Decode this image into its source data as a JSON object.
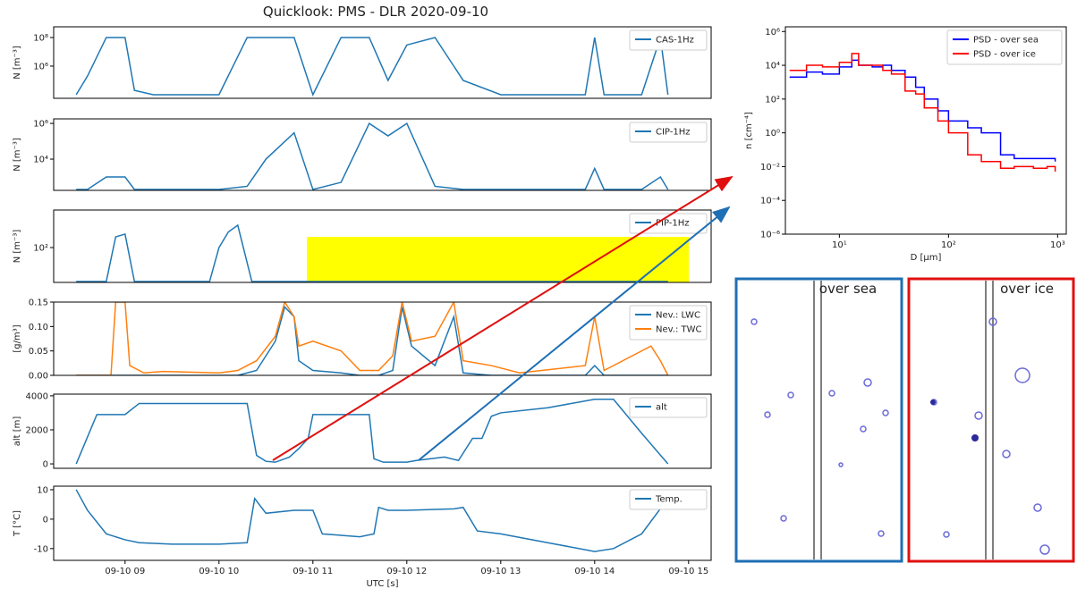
{
  "title": "Quicklook: PMS - DLR 2020-09-10",
  "chart_data": [
    {
      "type": "line",
      "ylabel": "N [m⁻³]",
      "yscale": "log",
      "xlim": [
        8.24,
        15.24
      ],
      "ylim": [
        5600,
        560000000
      ],
      "yticks": [
        {
          "value": 1000000,
          "label": "10⁶"
        },
        {
          "value": 100000000,
          "label": "10⁸"
        }
      ],
      "legend": "upper right",
      "x": [
        8.48,
        8.6,
        8.8,
        9.0,
        9.1,
        9.3,
        9.6,
        10.0,
        10.3,
        10.5,
        10.8,
        11.0,
        11.3,
        11.6,
        11.8,
        12.0,
        12.3,
        12.6,
        13.0,
        13.5,
        13.9,
        14.0,
        14.1,
        14.5,
        14.7,
        14.78
      ],
      "series": [
        {
          "name": "CAS-1Hz",
          "color": "#1f77b4",
          "values": [
            10000,
            200000,
            100000000,
            100000000,
            20000,
            10000,
            10000,
            10000,
            100000000,
            100000000,
            100000000,
            10000,
            100000000,
            100000000,
            100000,
            30000000,
            100000000,
            100000,
            10000,
            10000,
            10000,
            100000000,
            10000,
            10000,
            100000000,
            10000
          ]
        }
      ]
    },
    {
      "type": "line",
      "ylabel": "N [m⁻³]",
      "yscale": "log",
      "xlim": [
        8.24,
        15.24
      ],
      "ylim": [
        178,
        1800000
      ],
      "yticks": [
        {
          "value": 10000,
          "label": "10⁴"
        },
        {
          "value": 1000000,
          "label": "10⁶"
        }
      ],
      "legend": "upper right",
      "x": [
        8.48,
        8.6,
        8.8,
        9.0,
        9.1,
        9.3,
        9.6,
        10.0,
        10.3,
        10.5,
        10.8,
        11.0,
        11.3,
        11.6,
        11.8,
        12.0,
        12.3,
        12.6,
        13.0,
        13.5,
        13.9,
        14.0,
        14.1,
        14.5,
        14.7,
        14.78
      ],
      "series": [
        {
          "name": "CIP-1Hz",
          "color": "#1f77b4",
          "values": [
            200,
            200,
            1000,
            1000,
            200,
            200,
            200,
            200,
            300,
            10000,
            300000,
            200,
            500,
            1000000,
            200000,
            1000000,
            300,
            200,
            200,
            200,
            200,
            3000,
            200,
            200,
            1000,
            200
          ]
        }
      ]
    },
    {
      "type": "line",
      "ylabel": "N [m⁻³]",
      "yscale": "log",
      "xlim": [
        8.24,
        15.24
      ],
      "ylim": [
        2.75,
        4800
      ],
      "yticks": [
        {
          "value": 100,
          "label": "10²"
        }
      ],
      "legend": "upper right",
      "x": [
        8.48,
        8.8,
        8.9,
        9.0,
        9.1,
        9.3,
        9.9,
        10.0,
        10.1,
        10.2,
        10.35,
        10.5,
        14.78
      ],
      "series": [
        {
          "name": "PIP-1Hz",
          "color": "#1f77b4",
          "values": [
            3,
            3,
            300,
            400,
            3,
            3,
            3,
            100,
            500,
            1000,
            3,
            3,
            3
          ]
        }
      ]
    },
    {
      "type": "line",
      "ylabel": "[g/m³]",
      "xlim": [
        8.24,
        15.24
      ],
      "ylim": [
        0,
        0.15
      ],
      "yticks": [
        {
          "value": 0,
          "label": "0.00"
        },
        {
          "value": 0.05,
          "label": "0.05"
        },
        {
          "value": 0.1,
          "label": "0.10"
        },
        {
          "value": 0.15,
          "label": "0.15"
        }
      ],
      "legend": "upper right",
      "x": [
        8.48,
        8.85,
        8.9,
        9.0,
        9.05,
        9.2,
        9.4,
        10.0,
        10.2,
        10.4,
        10.6,
        10.7,
        10.8,
        10.85,
        11.0,
        11.3,
        11.5,
        11.7,
        11.85,
        11.95,
        12.05,
        12.3,
        12.5,
        12.6,
        12.9,
        13.2,
        13.9,
        14.0,
        14.1,
        14.6,
        14.7,
        14.78
      ],
      "series": [
        {
          "name": "Nev.: LWC",
          "color": "#1f77b4",
          "values": [
            0,
            0,
            0,
            0,
            0,
            0,
            0,
            0,
            0,
            0.01,
            0.07,
            0.14,
            0.12,
            0.03,
            0.01,
            0.005,
            0,
            0,
            0.01,
            0.14,
            0.06,
            0.02,
            0.12,
            0.005,
            0,
            0,
            0,
            0.02,
            0,
            0,
            0,
            0
          ]
        },
        {
          "name": "Nev.: TWC",
          "color": "#ff7f0e",
          "values": [
            0,
            0,
            0.15,
            0.15,
            0.02,
            0.005,
            0.008,
            0.005,
            0.01,
            0.03,
            0.08,
            0.15,
            0.12,
            0.06,
            0.07,
            0.05,
            0.01,
            0.01,
            0.04,
            0.15,
            0.07,
            0.08,
            0.15,
            0.03,
            0.02,
            0.005,
            0.02,
            0.12,
            0.01,
            0.06,
            0.03,
            0
          ]
        }
      ]
    },
    {
      "type": "line",
      "ylabel": "alt [m]",
      "xlim": [
        8.24,
        15.24
      ],
      "ylim": [
        -260,
        4100
      ],
      "yticks": [
        0,
        2000,
        4000
      ],
      "legend": "upper right",
      "x": [
        8.48,
        8.7,
        9.0,
        9.15,
        10.0,
        10.3,
        10.4,
        10.5,
        10.6,
        10.75,
        10.85,
        10.95,
        11.0,
        11.6,
        11.65,
        11.75,
        12.0,
        12.1,
        12.4,
        12.55,
        12.7,
        12.8,
        12.9,
        13.0,
        13.5,
        14.0,
        14.2,
        14.5,
        14.78
      ],
      "series": [
        {
          "name": "alt",
          "color": "#1f77b4",
          "values": [
            0,
            2900,
            2900,
            3550,
            3550,
            3550,
            500,
            150,
            100,
            400,
            900,
            1500,
            2900,
            2900,
            300,
            100,
            100,
            200,
            400,
            200,
            1500,
            1500,
            2800,
            3000,
            3300,
            3800,
            3800,
            1800,
            0
          ]
        }
      ]
    },
    {
      "type": "line",
      "ylabel": "T [°C]",
      "xlabel": "UTC [s]",
      "xlim": [
        8.24,
        15.24
      ],
      "ylim": [
        -14,
        11.2
      ],
      "yticks": [
        -10,
        0,
        10
      ],
      "legend": "upper right",
      "xticks": [
        {
          "value": 9,
          "label": "09-10 09"
        },
        {
          "value": 10,
          "label": "09-10 10"
        },
        {
          "value": 11,
          "label": "09-10 11"
        },
        {
          "value": 12,
          "label": "09-10 12"
        },
        {
          "value": 13,
          "label": "09-10 13"
        },
        {
          "value": 14,
          "label": "09-10 14"
        },
        {
          "value": 15,
          "label": "09-10 15"
        }
      ],
      "x": [
        8.48,
        8.6,
        8.8,
        9.0,
        9.15,
        9.5,
        10.0,
        10.3,
        10.38,
        10.5,
        10.8,
        11.0,
        11.1,
        11.5,
        11.65,
        11.7,
        11.8,
        12.0,
        12.5,
        12.6,
        12.75,
        13.0,
        13.5,
        14.0,
        14.2,
        14.5,
        14.78
      ],
      "series": [
        {
          "name": "Temp.",
          "color": "#1f77b4",
          "values": [
            10,
            3,
            -5,
            -7,
            -8,
            -8.5,
            -8.5,
            -8,
            7,
            2,
            3,
            3,
            -5,
            -6,
            -5,
            4,
            3,
            3,
            3.5,
            4,
            -4,
            -5,
            -8,
            -11,
            -10,
            -5,
            7
          ]
        }
      ]
    },
    {
      "type": "line",
      "step": true,
      "xscale": "log",
      "yscale": "log",
      "ylabel": "n [cm⁻⁴]",
      "xlabel": "D [μm]",
      "xlim": [
        3.2,
        1200
      ],
      "ylim": [
        1e-06,
        1900000
      ],
      "xticks": [
        {
          "value": 10,
          "label": "10¹"
        },
        {
          "value": 100,
          "label": "10²"
        },
        {
          "value": 1000,
          "label": "10³"
        }
      ],
      "yticks": [
        {
          "value": 1e-06,
          "label": "10⁻⁶"
        },
        {
          "value": 0.0001,
          "label": "10⁻⁴"
        },
        {
          "value": 0.01,
          "label": "10⁻²"
        },
        {
          "value": 1,
          "label": "10⁰"
        },
        {
          "value": 100,
          "label": "10²"
        },
        {
          "value": 10000,
          "label": "10⁴"
        },
        {
          "value": 1000000,
          "label": "10⁶"
        }
      ],
      "legend": "upper right",
      "x": [
        3.5,
        5,
        7,
        10,
        13,
        15,
        20,
        25,
        30,
        40,
        50,
        60,
        80,
        100,
        150,
        200,
        300,
        400,
        600,
        800,
        950
      ],
      "series": [
        {
          "name": "PSD - over sea",
          "color": "#0000ff",
          "values": [
            2000,
            4000,
            3000,
            8000,
            20000,
            10000,
            8000,
            10000,
            5000,
            2000,
            500,
            100,
            20,
            5,
            2,
            1,
            0.05,
            0.03,
            0.03,
            0.03,
            0.02
          ]
        },
        {
          "name": "PSD - over ice",
          "color": "#ff0000",
          "values": [
            5000,
            10000,
            8000,
            15000,
            50000,
            10000,
            10000,
            5000,
            3000,
            300,
            200,
            30,
            5,
            1,
            0.05,
            0.02,
            0.008,
            0.01,
            0.008,
            0.01,
            0.005
          ]
        }
      ]
    }
  ],
  "images": [
    {
      "label": "over sea"
    },
    {
      "label": "over ice"
    }
  ]
}
